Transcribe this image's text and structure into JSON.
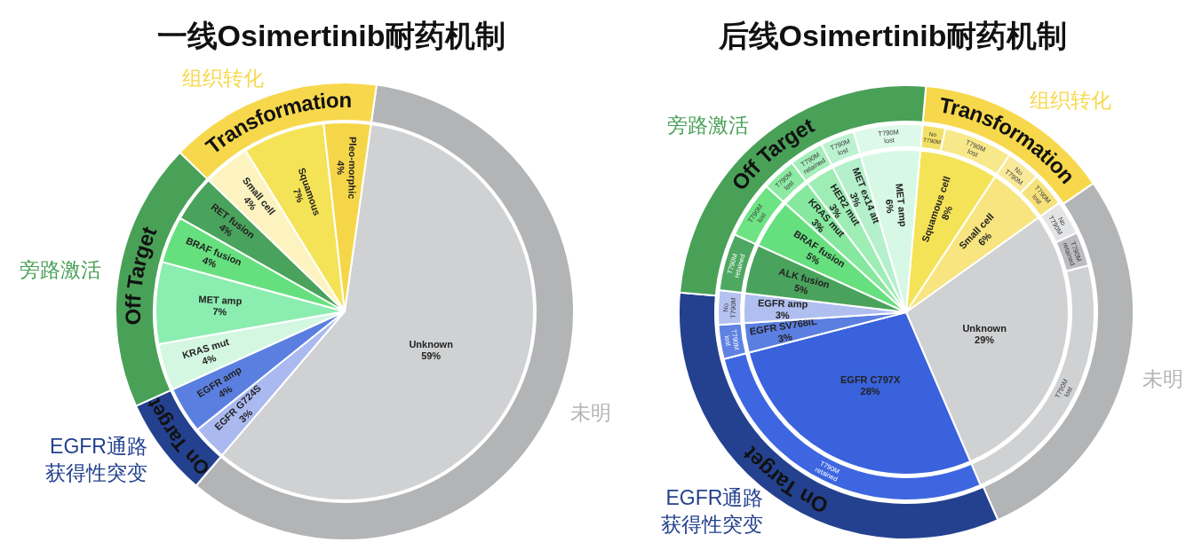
{
  "chart_data": [
    {
      "type": "pie",
      "title": "一线Osimertinib耐药机制",
      "categories": [
        "Unknown",
        "EGFR G724S",
        "EGFR amp",
        "KRAS mut",
        "MET amp",
        "BRAF fusion",
        "RET fusion",
        "Small cell",
        "Squamous",
        "Pleo-morphic"
      ],
      "values": [
        59,
        3,
        4,
        4,
        7,
        4,
        4,
        4,
        7,
        4
      ],
      "value_labels": [
        "59%",
        "3%",
        "4%",
        "4%",
        "7%",
        "4%",
        "4%",
        "4%",
        "7%",
        "4%"
      ],
      "colors": [
        "#d0d1d3",
        "#aab9f0",
        "#5b7fe0",
        "#d4f7e2",
        "#8cedb0",
        "#66e07e",
        "#4aa35c",
        "#fdf3c0",
        "#f5e357",
        "#f6d649"
      ]
    },
    {
      "type": "donut",
      "categories": [
        null,
        "On Target",
        "Off Target",
        "Transformation"
      ],
      "values": [
        59,
        7,
        19,
        15
      ],
      "colors": [
        "#b3b4b6",
        "#24418f",
        "#49a158",
        "#f7d84c"
      ],
      "annotations": [
        "未明",
        "EGFR通路获得性突变",
        "旁路激活",
        "组织转化"
      ]
    },
    {
      "type": "pie",
      "title": "后线Osimertinib耐药机制",
      "categories": [
        "Squamous cell",
        "Small cell",
        "Unknown",
        "EGFR C797X",
        "EGFR SV768IL",
        "EGFR amp",
        "ALK fusion",
        "BRAF fusion",
        "KRAS mut",
        "HER2 mut",
        "MET ex14 alt",
        "MET amp"
      ],
      "values": [
        8,
        6,
        29,
        28,
        3,
        3,
        5,
        5,
        3,
        3,
        3,
        6
      ],
      "value_labels": [
        "8%",
        "6%",
        "29%",
        "28%",
        "3%",
        "3%",
        "5%",
        "5%",
        "3%",
        "3%",
        "3%",
        "6%"
      ],
      "colors": [
        "#f5e357",
        "#f8e57f",
        "#d0d1d3",
        "#3a62dc",
        "#5b7fe0",
        "#b0bff0",
        "#4aa35c",
        "#66e07e",
        "#86e89e",
        "#9eedb5",
        "#b5f0cc",
        "#d8f8e6"
      ]
    },
    {
      "type": "donut",
      "categories": [
        "No T790M",
        "T790M lost",
        "No T790M",
        "T790M lost",
        "No T790M",
        "T790M retained",
        "T790M lost",
        "T790M retained",
        "T790M lost",
        "No T790M",
        "T790M retained",
        "T790M lost",
        "T790M lost",
        "T790M retained",
        "T790M lost",
        "T790M lost"
      ],
      "values": [
        2,
        6,
        3,
        3,
        3,
        3,
        23,
        28,
        3,
        3,
        5,
        5,
        3,
        3,
        3,
        6
      ],
      "colors": [
        "#f3e066",
        "#f7e88a",
        "#f9e99a",
        "#f6e27a",
        "#e3e4e6",
        "#bcbdc0",
        "#d0d1d3",
        "#3d66e0",
        "#5f82e2",
        "#b4c2f1",
        "#4fa862",
        "#6de384",
        "#8ceaa3",
        "#a4eeb9",
        "#bdf2d1",
        "#dcf9e9"
      ]
    },
    {
      "type": "donut",
      "categories": [
        "Transformation",
        null,
        "On Target",
        "Off Target"
      ],
      "values": [
        14,
        28,
        33,
        25
      ],
      "colors": [
        "#f7d84c",
        "#b3b4b6",
        "#24418f",
        "#49a158"
      ],
      "annotations": [
        "组织转化",
        "未明",
        "EGFR通路获得性突变",
        "旁路激活"
      ]
    }
  ]
}
